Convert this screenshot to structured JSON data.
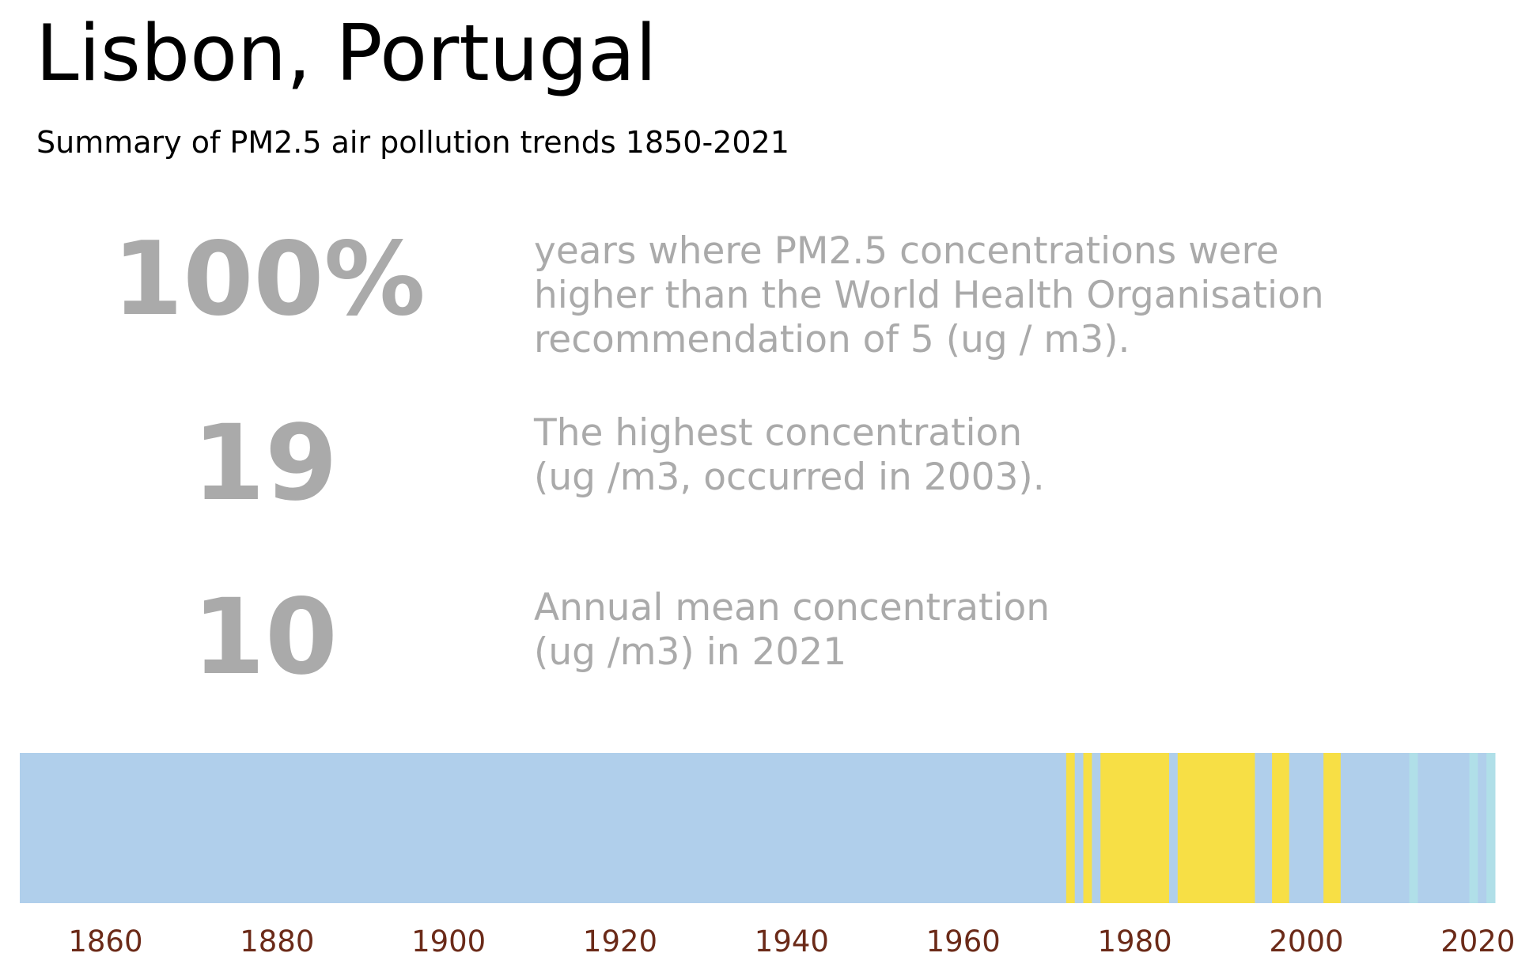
{
  "header": {
    "title": "Lisbon, Portugal",
    "subtitle": "Summary of PM2.5 air pollution trends 1850-2021"
  },
  "stats": [
    {
      "value": "100%",
      "lines": [
        "years where PM2.5 concentrations were",
        "higher than the World Health Organisation",
        "recommendation of 5 (ug / m3)."
      ]
    },
    {
      "value": "19",
      "lines": [
        "The highest concentration",
        "(ug /m3, occurred in 2003)."
      ]
    },
    {
      "value": "10",
      "lines": [
        "Annual mean concentration",
        "(ug /m3) in 2021"
      ]
    }
  ],
  "chart_data": {
    "type": "heatmap",
    "x_range": [
      1850,
      2022
    ],
    "x_ticks": [
      "1860",
      "1880",
      "1900",
      "1920",
      "1940",
      "1960",
      "1980",
      "2000",
      "2020"
    ],
    "colors": {
      "above_who": "#b0cfeb",
      "highest": "#f7df45",
      "recent_light": "#b0dfe8"
    },
    "segments": [
      {
        "start": 1850,
        "end": 1972,
        "color": "#b0cfeb"
      },
      {
        "start": 1972,
        "end": 1973,
        "color": "#f7df45"
      },
      {
        "start": 1973,
        "end": 1974,
        "color": "#b0cfeb"
      },
      {
        "start": 1974,
        "end": 1975,
        "color": "#f7df45"
      },
      {
        "start": 1975,
        "end": 1976,
        "color": "#b0cfeb"
      },
      {
        "start": 1976,
        "end": 1984,
        "color": "#f7df45"
      },
      {
        "start": 1984,
        "end": 1985,
        "color": "#b0cfeb"
      },
      {
        "start": 1985,
        "end": 1994,
        "color": "#f7df45"
      },
      {
        "start": 1994,
        "end": 1996,
        "color": "#b0cfeb"
      },
      {
        "start": 1996,
        "end": 1998,
        "color": "#f7df45"
      },
      {
        "start": 1998,
        "end": 2002,
        "color": "#b0cfeb"
      },
      {
        "start": 2002,
        "end": 2004,
        "color": "#f7df45"
      },
      {
        "start": 2004,
        "end": 2012,
        "color": "#b0cfeb"
      },
      {
        "start": 2012,
        "end": 2013,
        "color": "#b0dfe8"
      },
      {
        "start": 2013,
        "end": 2019,
        "color": "#b0cfeb"
      },
      {
        "start": 2019,
        "end": 2020,
        "color": "#b0dfe8"
      },
      {
        "start": 2020,
        "end": 2021,
        "color": "#b0cfeb"
      },
      {
        "start": 2021,
        "end": 2022,
        "color": "#b0dfe8"
      }
    ]
  }
}
